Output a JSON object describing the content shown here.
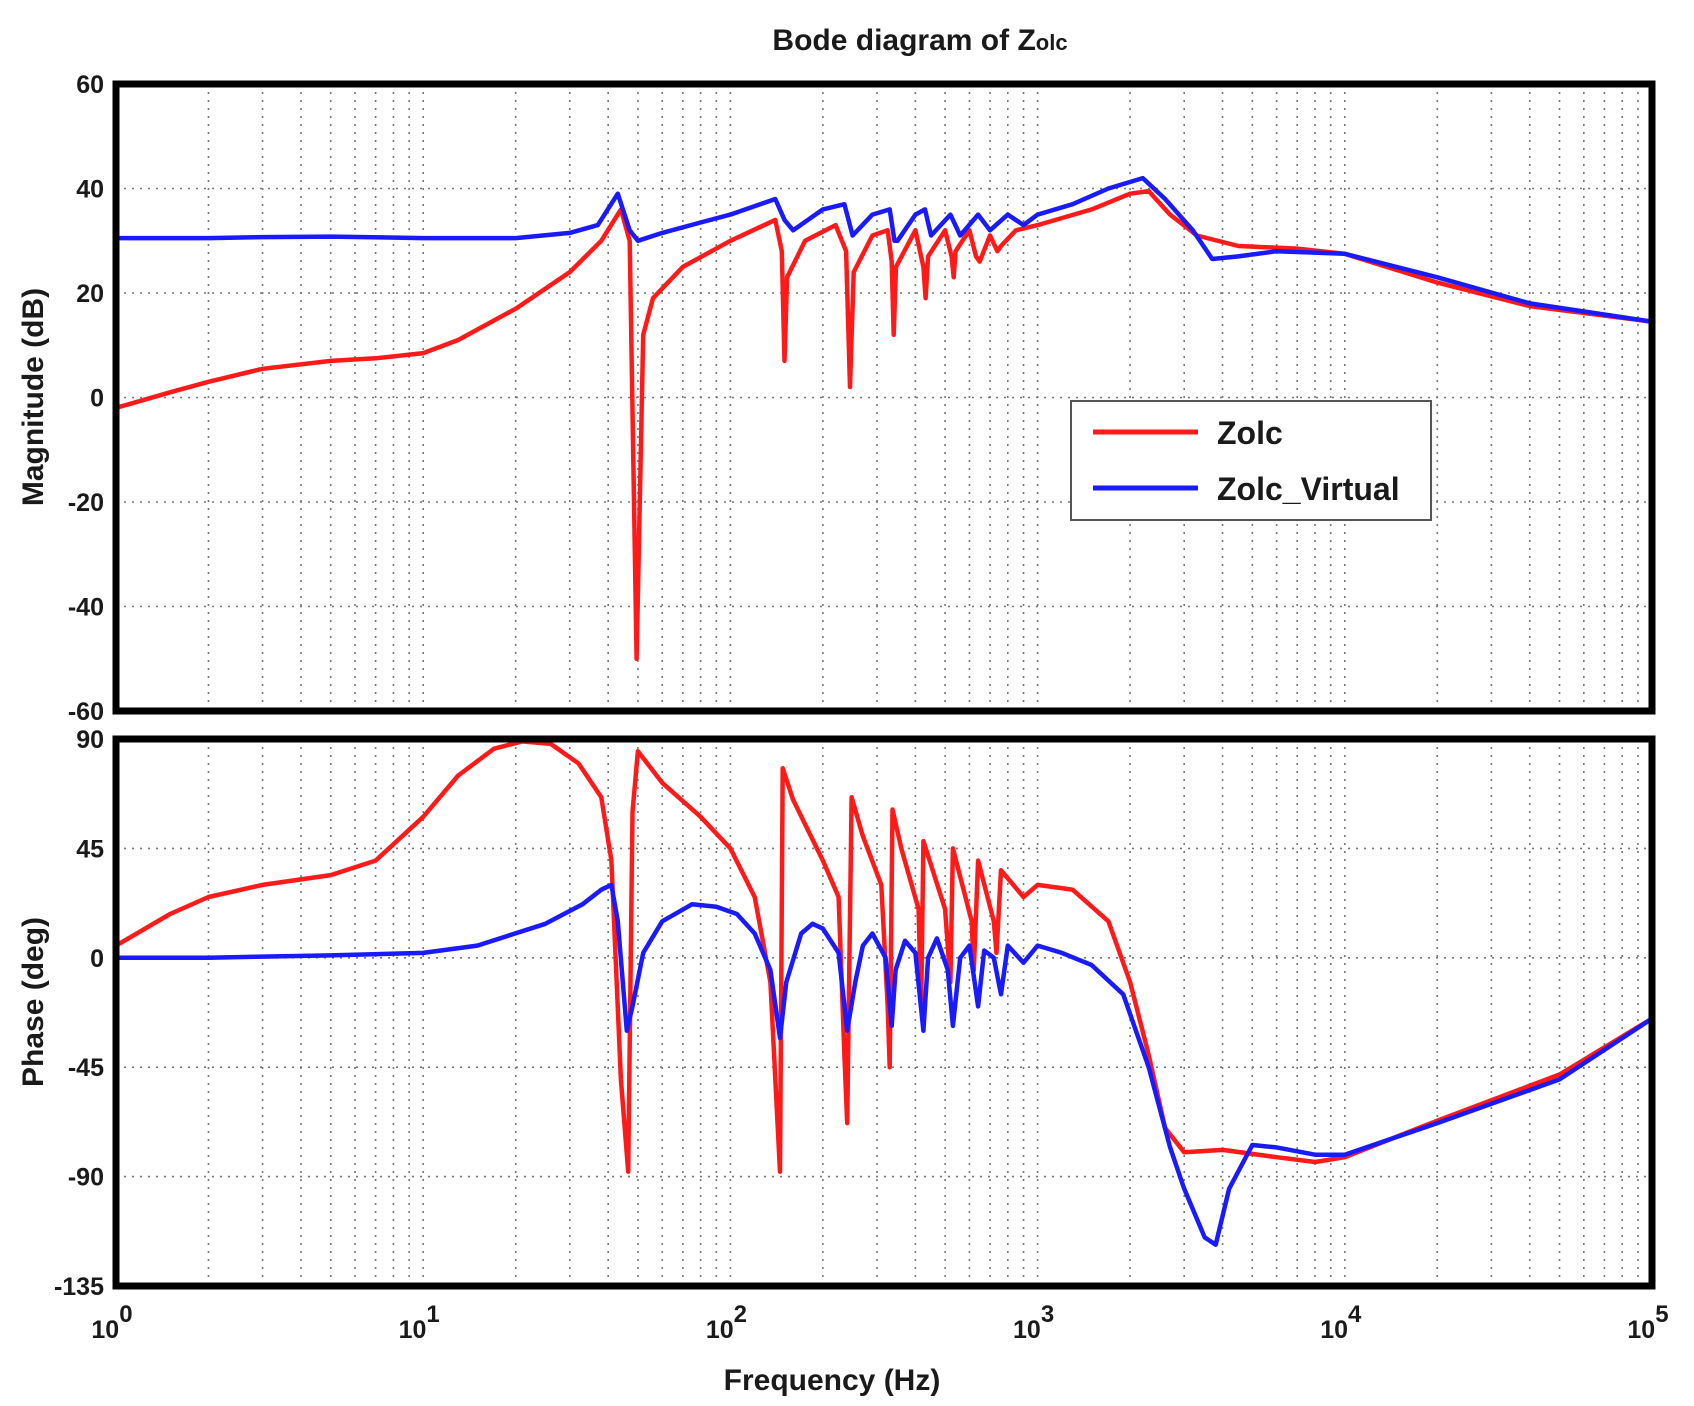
{
  "chart_data": {
    "type": "line",
    "title": "Bode diagram of Z",
    "title_subscript": "olc",
    "xscale": "log",
    "xlabel": "Frequency (Hz)",
    "xlim": [
      1,
      100000
    ],
    "xticks": [
      {
        "base": "10",
        "exp": "0"
      },
      {
        "base": "10",
        "exp": "1"
      },
      {
        "base": "10",
        "exp": "2"
      },
      {
        "base": "10",
        "exp": "3"
      },
      {
        "base": "10",
        "exp": "4"
      },
      {
        "base": "10",
        "exp": "5"
      }
    ],
    "grid": true,
    "legend": {
      "position": "center-right of magnitude panel",
      "entries": [
        {
          "label": "Zolc",
          "color": "#ff1a1a"
        },
        {
          "label": "Zolc_Virtual",
          "color": "#1a1aff"
        }
      ]
    },
    "panels": [
      {
        "name": "magnitude",
        "ylabel": "Magnitude (dB)",
        "ylim": [
          -60,
          60
        ],
        "yticks": [
          "60",
          "40",
          "20",
          "0",
          "-20",
          "-40",
          "-60"
        ],
        "series": [
          {
            "name": "Zolc",
            "color": "#ff1a1a",
            "points": [
              [
                1,
                -2
              ],
              [
                1.5,
                1
              ],
              [
                2,
                3
              ],
              [
                3,
                5.5
              ],
              [
                5,
                7
              ],
              [
                7,
                7.5
              ],
              [
                10,
                8.5
              ],
              [
                13,
                11
              ],
              [
                20,
                17
              ],
              [
                30,
                24
              ],
              [
                38,
                30
              ],
              [
                44,
                36
              ],
              [
                47,
                30
              ],
              [
                49.5,
                -50
              ],
              [
                52,
                12
              ],
              [
                56,
                19
              ],
              [
                70,
                25
              ],
              [
                100,
                30
              ],
              [
                140,
                34
              ],
              [
                147,
                28
              ],
              [
                150,
                7
              ],
              [
                153,
                23
              ],
              [
                175,
                30
              ],
              [
                220,
                33
              ],
              [
                238,
                28
              ],
              [
                245,
                2
              ],
              [
                252,
                24
              ],
              [
                290,
                31
              ],
              [
                325,
                32
              ],
              [
                335,
                26
              ],
              [
                340,
                12
              ],
              [
                346,
                25
              ],
              [
                400,
                32
              ],
              [
                425,
                25
              ],
              [
                432,
                19
              ],
              [
                440,
                27
              ],
              [
                500,
                32
              ],
              [
                525,
                27
              ],
              [
                533,
                23
              ],
              [
                541,
                28
              ],
              [
                600,
                32
              ],
              [
                630,
                27
              ],
              [
                648,
                26
              ],
              [
                700,
                31
              ],
              [
                740,
                28
              ],
              [
                760,
                29
              ],
              [
                850,
                32
              ],
              [
                1000,
                33
              ],
              [
                1500,
                36
              ],
              [
                2000,
                39
              ],
              [
                2300,
                39.5
              ],
              [
                2700,
                35
              ],
              [
                3300,
                31
              ],
              [
                4500,
                29
              ],
              [
                7000,
                28.5
              ],
              [
                10000,
                27.5
              ],
              [
                20000,
                22
              ],
              [
                40000,
                17.5
              ],
              [
                100000,
                14.5
              ]
            ]
          },
          {
            "name": "Zolc_Virtual",
            "color": "#1a1aff",
            "points": [
              [
                1,
                30.5
              ],
              [
                2,
                30.5
              ],
              [
                3,
                30.7
              ],
              [
                5,
                30.8
              ],
              [
                10,
                30.5
              ],
              [
                20,
                30.5
              ],
              [
                30,
                31.5
              ],
              [
                37,
                33
              ],
              [
                43,
                39
              ],
              [
                47,
                32
              ],
              [
                50,
                30
              ],
              [
                60,
                31.5
              ],
              [
                80,
                33.5
              ],
              [
                100,
                35
              ],
              [
                140,
                38
              ],
              [
                150,
                34
              ],
              [
                160,
                32
              ],
              [
                200,
                36
              ],
              [
                235,
                37
              ],
              [
                250,
                31
              ],
              [
                290,
                35
              ],
              [
                330,
                36
              ],
              [
                342,
                30
              ],
              [
                350,
                30
              ],
              [
                400,
                35
              ],
              [
                430,
                36
              ],
              [
                450,
                31
              ],
              [
                520,
                35
              ],
              [
                560,
                31
              ],
              [
                640,
                35
              ],
              [
                700,
                32
              ],
              [
                800,
                35
              ],
              [
                900,
                33
              ],
              [
                1000,
                35
              ],
              [
                1300,
                37
              ],
              [
                1700,
                40
              ],
              [
                2200,
                42
              ],
              [
                2600,
                38
              ],
              [
                3200,
                32
              ],
              [
                3700,
                26.5
              ],
              [
                4500,
                27
              ],
              [
                6000,
                28
              ],
              [
                10000,
                27.5
              ],
              [
                20000,
                23
              ],
              [
                40000,
                18
              ],
              [
                100000,
                14.5
              ]
            ]
          }
        ]
      },
      {
        "name": "phase",
        "ylabel": "Phase (deg)",
        "ylim": [
          -135,
          90
        ],
        "yticks": [
          "90",
          "45",
          "0",
          "-45",
          "-90",
          "-135"
        ],
        "series": [
          {
            "name": "Zolc",
            "color": "#ff1a1a",
            "points": [
              [
                1,
                5
              ],
              [
                1.5,
                18
              ],
              [
                2,
                25
              ],
              [
                3,
                30
              ],
              [
                5,
                34
              ],
              [
                7,
                40
              ],
              [
                10,
                58
              ],
              [
                13,
                75
              ],
              [
                17,
                86
              ],
              [
                21,
                89
              ],
              [
                26,
                88
              ],
              [
                32,
                80
              ],
              [
                38,
                66
              ],
              [
                41,
                40
              ],
              [
                44,
                -50
              ],
              [
                46.5,
                -88
              ],
              [
                48,
                60
              ],
              [
                50,
                85
              ],
              [
                60,
                72
              ],
              [
                80,
                58
              ],
              [
                100,
                45
              ],
              [
                120,
                25
              ],
              [
                135,
                -10
              ],
              [
                145,
                -88
              ],
              [
                148,
                78
              ],
              [
                160,
                65
              ],
              [
                200,
                40
              ],
              [
                225,
                25
              ],
              [
                235,
                -40
              ],
              [
                240,
                -68
              ],
              [
                248,
                66
              ],
              [
                270,
                50
              ],
              [
                310,
                30
              ],
              [
                325,
                -20
              ],
              [
                330,
                -45
              ],
              [
                337,
                61
              ],
              [
                360,
                45
              ],
              [
                410,
                20
              ],
              [
                418,
                -20
              ],
              [
                425,
                48
              ],
              [
                500,
                20
              ],
              [
                520,
                -10
              ],
              [
                530,
                45
              ],
              [
                610,
                15
              ],
              [
                620,
                -5
              ],
              [
                640,
                40
              ],
              [
                720,
                15
              ],
              [
                735,
                2
              ],
              [
                760,
                36
              ],
              [
                900,
                25
              ],
              [
                1000,
                30
              ],
              [
                1300,
                28
              ],
              [
                1700,
                15
              ],
              [
                2000,
                -10
              ],
              [
                2300,
                -40
              ],
              [
                2600,
                -70
              ],
              [
                3000,
                -80
              ],
              [
                4000,
                -79
              ],
              [
                6000,
                -82
              ],
              [
                8000,
                -84
              ],
              [
                10000,
                -82
              ],
              [
                20000,
                -67
              ],
              [
                50000,
                -48
              ],
              [
                100000,
                -25
              ]
            ]
          },
          {
            "name": "Zolc_Virtual",
            "color": "#1a1aff",
            "points": [
              [
                1,
                0
              ],
              [
                2,
                0
              ],
              [
                3,
                0.5
              ],
              [
                5,
                1
              ],
              [
                10,
                2
              ],
              [
                15,
                5
              ],
              [
                25,
                14
              ],
              [
                33,
                22
              ],
              [
                38,
                28
              ],
              [
                41,
                30
              ],
              [
                43,
                15
              ],
              [
                46,
                -30
              ],
              [
                48,
                -20
              ],
              [
                52,
                2
              ],
              [
                60,
                15
              ],
              [
                75,
                22
              ],
              [
                90,
                21
              ],
              [
                105,
                18
              ],
              [
                120,
                10
              ],
              [
                135,
                -5
              ],
              [
                145,
                -33
              ],
              [
                152,
                -10
              ],
              [
                170,
                10
              ],
              [
                185,
                14
              ],
              [
                200,
                12
              ],
              [
                225,
                2
              ],
              [
                240,
                -30
              ],
              [
                255,
                -10
              ],
              [
                270,
                5
              ],
              [
                290,
                10
              ],
              [
                320,
                0
              ],
              [
                335,
                -28
              ],
              [
                345,
                -5
              ],
              [
                370,
                7
              ],
              [
                400,
                2
              ],
              [
                425,
                -30
              ],
              [
                440,
                0
              ],
              [
                470,
                8
              ],
              [
                510,
                -5
              ],
              [
                530,
                -28
              ],
              [
                560,
                0
              ],
              [
                600,
                5
              ],
              [
                640,
                -20
              ],
              [
                670,
                3
              ],
              [
                720,
                0
              ],
              [
                760,
                -15
              ],
              [
                800,
                5
              ],
              [
                900,
                -2
              ],
              [
                1000,
                5
              ],
              [
                1200,
                2
              ],
              [
                1500,
                -3
              ],
              [
                1900,
                -15
              ],
              [
                2300,
                -45
              ],
              [
                2700,
                -78
              ],
              [
                3000,
                -95
              ],
              [
                3500,
                -115
              ],
              [
                3800,
                -118
              ],
              [
                4200,
                -95
              ],
              [
                5000,
                -77
              ],
              [
                6000,
                -78
              ],
              [
                8000,
                -81
              ],
              [
                10000,
                -81
              ],
              [
                20000,
                -68
              ],
              [
                50000,
                -50
              ],
              [
                100000,
                -25
              ]
            ]
          }
        ]
      }
    ]
  }
}
